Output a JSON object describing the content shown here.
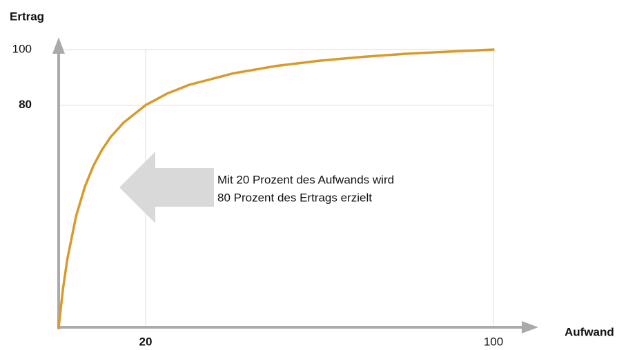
{
  "chart_data": {
    "type": "line",
    "xlabel": "Aufwand",
    "ylabel": "Ertrag",
    "x": [
      0,
      1,
      2,
      4,
      6,
      8,
      10,
      12,
      15,
      20,
      25,
      30,
      40,
      50,
      60,
      70,
      80,
      90,
      100
    ],
    "values": [
      0,
      13.9,
      24.6,
      40.0,
      50.5,
      58.2,
      64.0,
      68.6,
      73.8,
      80.0,
      84.2,
      87.3,
      91.4,
      94.1,
      96.0,
      97.4,
      98.5,
      99.3,
      100.0
    ],
    "color": "#d99a2b",
    "xlim": [
      0,
      100
    ],
    "ylim": [
      0,
      100
    ],
    "xticks": [
      20,
      100
    ],
    "yticks": [
      80,
      100
    ],
    "grid": true,
    "annotation": [
      "Mit 20 Prozent des Aufwands wird",
      "80 Prozent des Ertrags erzielt"
    ]
  }
}
